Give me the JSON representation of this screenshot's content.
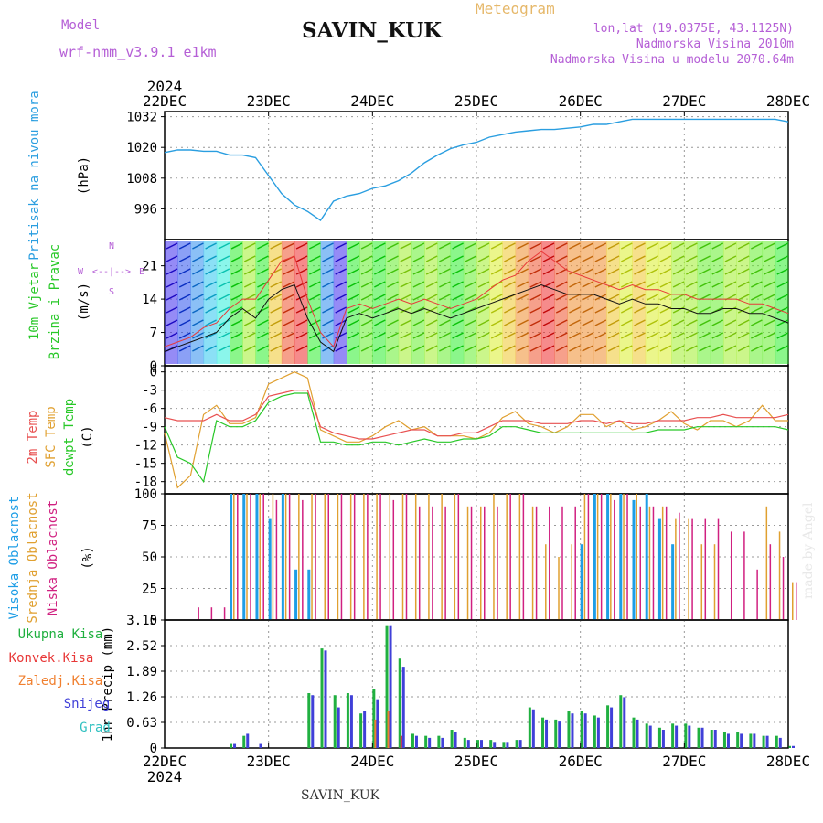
{
  "header": {
    "model_label": "Model",
    "model_name": "wrf-nmm_v3.9.1 e1km",
    "station": "SAVIN_KUK",
    "meteogram_label": "Meteogram",
    "lonlat": "lon,lat (19.0375E, 43.1125N)",
    "elevation": "Nadmorska Visina 2010m",
    "elevation_model": "Nadmorska Visina u modelu 2070.64m"
  },
  "credit": "made by Angel",
  "footer_station": "SAVIN_KUK",
  "colors": {
    "pressure": "#2a9ee0",
    "wind_speed": "#111111",
    "wind_gust": "#e83838",
    "t2m": "#e85050",
    "tsfc": "#e0a030",
    "dewpt": "#28c828",
    "cloud_high": "#1e9ee6",
    "cloud_mid": "#e0a030",
    "cloud_low": "#d02080",
    "precip_total": "#20b040",
    "precip_conv": "#e83838",
    "precip_frz": "#f08030",
    "precip_snow": "#4040d8",
    "precip_grad": "#30c0c0",
    "sidebar_purple": "#b55fd6"
  },
  "chart_data": [
    {
      "type": "line",
      "panel": "pressure",
      "title": "",
      "ylabel": [
        "Pritisak na nivou mora",
        "(hPa)"
      ],
      "ylim": [
        984,
        1034
      ],
      "yticks": [
        996,
        1008,
        1020,
        1032
      ],
      "x_top_labels": [
        "22DEC",
        "23DEC",
        "24DEC",
        "25DEC",
        "26DEC",
        "27DEC",
        "28DEC"
      ],
      "x_top_year": "2024",
      "x_hours": [
        0,
        3,
        6,
        9,
        12,
        15,
        18,
        21,
        24,
        27,
        30,
        33,
        36,
        39,
        42,
        45,
        48,
        51,
        54,
        57,
        60,
        63,
        66,
        69,
        72,
        75,
        78,
        81,
        84,
        87,
        90,
        93,
        96,
        99,
        102,
        105,
        108,
        111,
        114,
        117,
        120,
        123,
        126,
        129,
        132,
        135,
        138,
        141,
        144
      ],
      "series": [
        {
          "values": [
            1018,
            1019,
            1019,
            1018.5,
            1018.5,
            1017,
            1017,
            1016,
            1009,
            1002,
            997.5,
            995,
            991.5,
            999,
            1001,
            1002,
            1004,
            1005,
            1007,
            1010,
            1014,
            1017,
            1019.5,
            1021,
            1022,
            1024,
            1025,
            1026,
            1026.5,
            1027,
            1027,
            1027.5,
            1028,
            1029,
            1029,
            1030,
            1031,
            1031,
            1031,
            1031,
            1031,
            1031,
            1031,
            1031,
            1031,
            1031,
            1031,
            1031,
            1030
          ]
        }
      ]
    },
    {
      "type": "line",
      "panel": "wind",
      "ylabel": [
        "10m Vjetar",
        "Brzina i Pravac",
        "(m/s)"
      ],
      "compass": [
        "N",
        "<--",
        "|",
        "-->",
        "W",
        "S",
        "E"
      ],
      "ylim": [
        0,
        26.5
      ],
      "yticks": [
        0,
        7,
        14,
        21
      ],
      "x_hours": [
        0,
        3,
        6,
        9,
        12,
        15,
        18,
        21,
        24,
        27,
        30,
        33,
        36,
        39,
        42,
        45,
        48,
        51,
        54,
        57,
        60,
        63,
        66,
        69,
        72,
        75,
        78,
        81,
        84,
        87,
        90,
        93,
        96,
        99,
        102,
        105,
        108,
        111,
        114,
        117,
        120,
        123,
        126,
        129,
        132,
        135,
        138,
        141,
        144
      ],
      "series": [
        {
          "values": [
            3,
            4,
            5,
            6,
            7,
            10,
            12,
            10,
            14,
            16,
            17,
            10,
            5,
            3,
            10,
            11,
            10,
            11,
            12,
            11,
            12,
            11,
            10,
            11,
            12,
            13,
            14,
            15,
            16,
            17,
            16,
            15,
            15,
            15,
            14,
            13,
            14,
            13,
            13,
            12,
            12,
            11,
            11,
            12,
            12,
            11,
            11,
            10,
            9
          ]
        },
        {
          "values": [
            4,
            5,
            6,
            8,
            9,
            12,
            14,
            14,
            18,
            22,
            23,
            14,
            7,
            4,
            12,
            13,
            12,
            13,
            14,
            13,
            14,
            13,
            12,
            13,
            14,
            16,
            18,
            19,
            22,
            24,
            22,
            20,
            19,
            18,
            17,
            16,
            17,
            16,
            16,
            15,
            15,
            14,
            14,
            14,
            14,
            13,
            13,
            12,
            11
          ]
        }
      ]
    },
    {
      "type": "line",
      "panel": "temperature",
      "ylabel": [
        "2m Temp",
        "SFC Temp",
        "dewpt Temp",
        "(C)"
      ],
      "ylim": [
        -20,
        1
      ],
      "yticks": [
        0,
        -3,
        -6,
        -9,
        -12,
        -15,
        -18
      ],
      "x_hours": [
        0,
        3,
        6,
        9,
        12,
        15,
        18,
        21,
        24,
        27,
        30,
        33,
        36,
        39,
        42,
        45,
        48,
        51,
        54,
        57,
        60,
        63,
        66,
        69,
        72,
        75,
        78,
        81,
        84,
        87,
        90,
        93,
        96,
        99,
        102,
        105,
        108,
        111,
        114,
        117,
        120,
        123,
        126,
        129,
        132,
        135,
        138,
        141,
        144
      ],
      "series": [
        {
          "values": [
            -7.5,
            -8,
            -8,
            -8,
            -7,
            -8,
            -8,
            -7,
            -4,
            -3.5,
            -3,
            -3,
            -9,
            -10,
            -10.5,
            -11,
            -11,
            -10.5,
            -10,
            -9.5,
            -9.5,
            -10.5,
            -10.5,
            -10,
            -10,
            -9,
            -8,
            -8,
            -8,
            -8.5,
            -8.5,
            -8.5,
            -8,
            -8,
            -8.5,
            -8,
            -8.5,
            -8.5,
            -8,
            -8,
            -8,
            -7.5,
            -7.5,
            -7,
            -7.5,
            -7.5,
            -7.5,
            -7.5,
            -7
          ]
        },
        {
          "values": [
            -10,
            -19,
            -17,
            -7,
            -5.5,
            -8.5,
            -8.5,
            -7.5,
            -2,
            -1,
            0,
            -1,
            -9.5,
            -10.5,
            -11.5,
            -11.5,
            -10.5,
            -9,
            -8,
            -9.5,
            -9,
            -10.5,
            -10.5,
            -10.5,
            -11,
            -10,
            -7.5,
            -6.5,
            -8.5,
            -9,
            -10,
            -9,
            -7,
            -7,
            -9,
            -8,
            -9.5,
            -9,
            -8,
            -6.5,
            -8.5,
            -9.5,
            -8,
            -8,
            -9,
            -8,
            -5.5,
            -8,
            -8
          ]
        },
        {
          "values": [
            -9,
            -14,
            -15,
            -18,
            -8,
            -9,
            -9,
            -8,
            -5,
            -4,
            -3.5,
            -3.5,
            -11.5,
            -11.5,
            -12,
            -12,
            -11.5,
            -11.5,
            -12,
            -11.5,
            -11,
            -11.5,
            -11.5,
            -11,
            -11,
            -10.5,
            -9,
            -9,
            -9.5,
            -10,
            -10,
            -10,
            -10,
            -10,
            -10,
            -10,
            -10,
            -10,
            -9.5,
            -9.5,
            -9.5,
            -9,
            -9,
            -9,
            -9,
            -9,
            -9,
            -9,
            -9.5
          ]
        }
      ]
    },
    {
      "type": "bar",
      "panel": "cloud",
      "ylabel": [
        "Visoka Oblacnost",
        "Srednja Oblacnost",
        "Niska Oblacnost",
        "(%)"
      ],
      "ylim": [
        0,
        100
      ],
      "yticks": [
        0,
        25,
        50,
        75,
        100
      ],
      "x_hours": [
        0,
        3,
        6,
        9,
        12,
        15,
        18,
        21,
        24,
        27,
        30,
        33,
        36,
        39,
        42,
        45,
        48,
        51,
        54,
        57,
        60,
        63,
        66,
        69,
        72,
        75,
        78,
        81,
        84,
        87,
        90,
        93,
        96,
        99,
        102,
        105,
        108,
        111,
        114,
        117,
        120,
        123,
        126,
        129,
        132,
        135,
        138,
        141,
        144
      ],
      "series": [
        {
          "values": [
            0,
            0,
            0,
            0,
            0,
            100,
            100,
            100,
            80,
            100,
            40,
            40,
            0,
            0,
            0,
            0,
            0,
            0,
            0,
            0,
            0,
            0,
            0,
            0,
            0,
            0,
            0,
            0,
            0,
            0,
            0,
            0,
            60,
            100,
            100,
            100,
            95,
            100,
            80,
            60,
            0,
            0,
            0,
            0,
            0,
            0,
            0,
            0,
            0
          ]
        },
        {
          "values": [
            0,
            0,
            0,
            0,
            0,
            100,
            100,
            100,
            100,
            100,
            100,
            100,
            100,
            100,
            100,
            100,
            100,
            100,
            100,
            100,
            100,
            100,
            100,
            90,
            90,
            100,
            100,
            100,
            90,
            60,
            50,
            60,
            100,
            100,
            100,
            100,
            100,
            90,
            90,
            80,
            80,
            60,
            60,
            0,
            0,
            0,
            90,
            70,
            30
          ]
        },
        {
          "values": [
            0,
            0,
            10,
            10,
            10,
            100,
            100,
            100,
            95,
            100,
            95,
            100,
            100,
            100,
            100,
            100,
            100,
            95,
            100,
            90,
            90,
            90,
            100,
            90,
            90,
            90,
            100,
            100,
            90,
            90,
            90,
            90,
            100,
            100,
            95,
            100,
            90,
            90,
            90,
            85,
            80,
            80,
            80,
            70,
            70,
            40,
            60,
            50,
            30
          ]
        }
      ]
    },
    {
      "type": "bar",
      "panel": "precip",
      "ylabel": [
        "Ukupna Kisa",
        "Konvek.Kisa",
        "Zaledj.Kisa",
        "Snijeg",
        "Grad",
        "1hr Precip (mm)"
      ],
      "ylim": [
        0,
        3.15
      ],
      "yticks": [
        0,
        0.63,
        1.26,
        1.89,
        2.52,
        3.15
      ],
      "x_bottom_labels": [
        "22DEC",
        "23DEC",
        "24DEC",
        "25DEC",
        "26DEC",
        "27DEC",
        "28DEC"
      ],
      "x_bottom_year": "2024",
      "x_hours": [
        0,
        3,
        6,
        9,
        12,
        15,
        18,
        21,
        24,
        27,
        30,
        33,
        36,
        39,
        42,
        45,
        48,
        51,
        54,
        57,
        60,
        63,
        66,
        69,
        72,
        75,
        78,
        81,
        84,
        87,
        90,
        93,
        96,
        99,
        102,
        105,
        108,
        111,
        114,
        117,
        120,
        123,
        126,
        129,
        132,
        135,
        138,
        141,
        144
      ],
      "series": [
        {
          "values": [
            0,
            0,
            0,
            0,
            0,
            0.1,
            0.3,
            0,
            0,
            0,
            0,
            1.35,
            2.45,
            1.3,
            1.35,
            0.85,
            1.45,
            3.0,
            2.2,
            0.35,
            0.3,
            0.3,
            0.45,
            0.25,
            0.2,
            0.2,
            0.15,
            0.2,
            1.0,
            0.75,
            0.7,
            0.9,
            0.9,
            0.8,
            1.05,
            1.3,
            0.75,
            0.6,
            0.5,
            0.6,
            0.6,
            0.5,
            0.45,
            0.4,
            0.4,
            0.35,
            0.3,
            0.3,
            0.05
          ]
        },
        {
          "values": [
            0,
            0,
            0,
            0,
            0,
            0,
            0,
            0,
            0,
            0,
            0,
            0,
            0,
            0,
            0,
            0,
            0,
            0.2,
            0.3,
            0,
            0,
            0,
            0,
            0,
            0,
            0,
            0,
            0,
            0,
            0,
            0,
            0,
            0,
            0,
            0,
            0,
            0,
            0,
            0,
            0,
            0,
            0,
            0,
            0,
            0,
            0,
            0,
            0,
            0
          ]
        },
        {
          "values": [
            0,
            0,
            0,
            0,
            0,
            0,
            0,
            0,
            0,
            0,
            0,
            0,
            0,
            0,
            0,
            0,
            0.7,
            0.9,
            0,
            0,
            0,
            0,
            0,
            0,
            0,
            0,
            0,
            0,
            0,
            0,
            0,
            0,
            0,
            0,
            0,
            0,
            0,
            0,
            0,
            0,
            0,
            0,
            0,
            0,
            0,
            0,
            0
          ]
        },
        {
          "values": [
            0,
            0,
            0,
            0,
            0,
            0.1,
            0.35,
            0.1,
            0,
            0,
            0,
            1.3,
            2.4,
            1.0,
            1.3,
            0.9,
            1.2,
            3.0,
            2.0,
            0.3,
            0.25,
            0.25,
            0.4,
            0.2,
            0.2,
            0.15,
            0.15,
            0.2,
            0.95,
            0.7,
            0.65,
            0.85,
            0.85,
            0.75,
            1.0,
            1.25,
            0.7,
            0.55,
            0.45,
            0.55,
            0.55,
            0.5,
            0.45,
            0.35,
            0.35,
            0.35,
            0.3,
            0.25,
            0.05
          ]
        },
        {
          "values": [
            0,
            0,
            0,
            0,
            0,
            0,
            0,
            0,
            0,
            0,
            0,
            0,
            0,
            0,
            0,
            0,
            0,
            0,
            0,
            0,
            0,
            0,
            0,
            0,
            0,
            0,
            0,
            0,
            0,
            0,
            0,
            0,
            0,
            0,
            0,
            0,
            0,
            0,
            0,
            0,
            0,
            0,
            0,
            0,
            0,
            0,
            0,
            0,
            0
          ]
        }
      ]
    }
  ]
}
